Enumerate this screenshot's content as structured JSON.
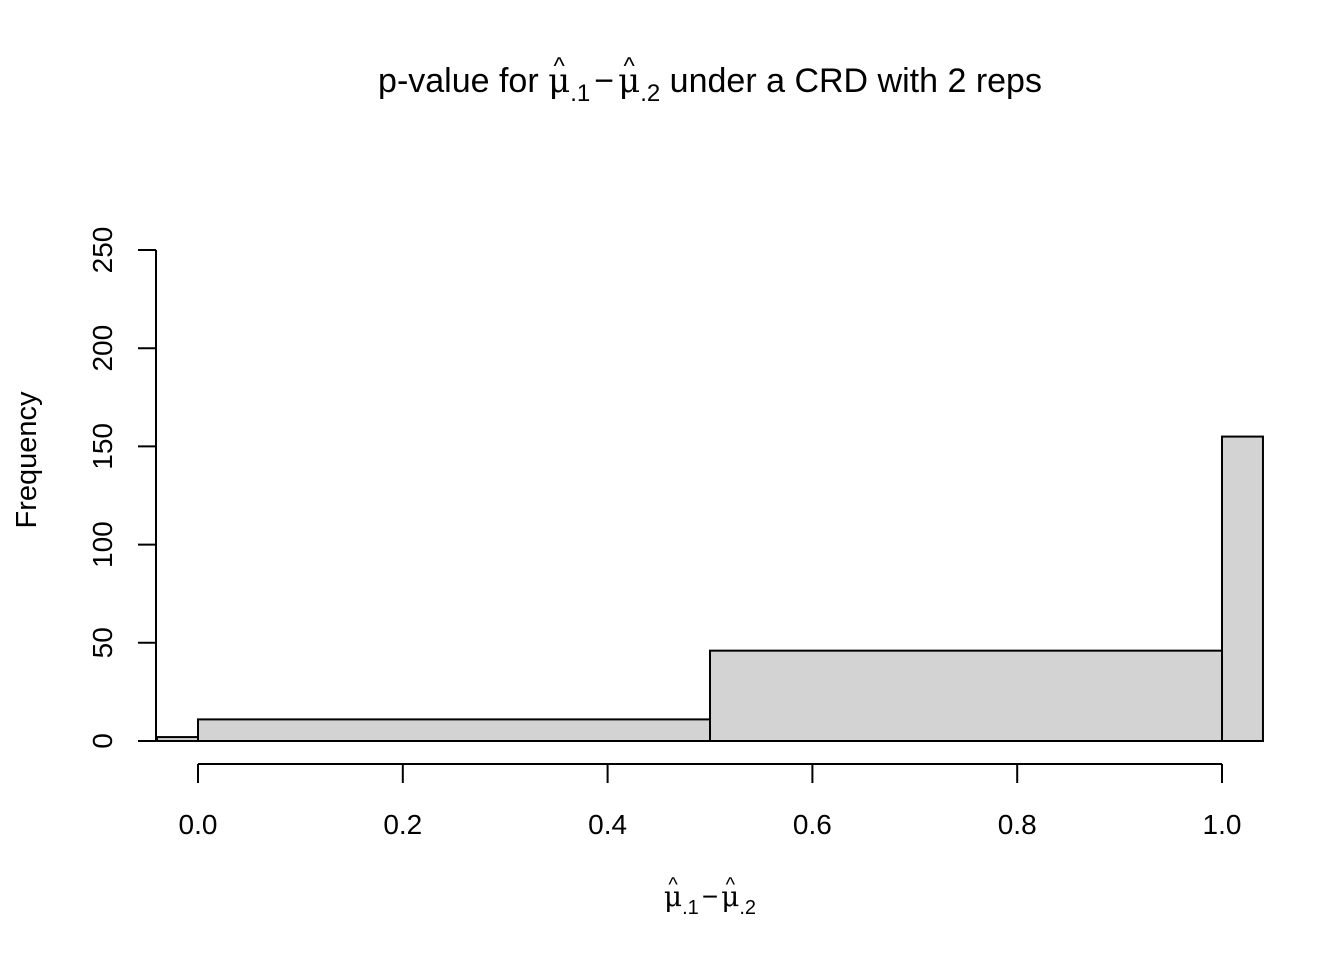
{
  "chart_data": {
    "type": "bar",
    "title": {
      "prefix": "p-value for ",
      "m1": "μ",
      "m1_hat": "^",
      "m1_sub": ".1",
      "minus": "−",
      "m2": "μ",
      "m2_hat": "^",
      "m2_sub": ".2",
      "suffix": " under a CRD with 2 reps"
    },
    "xlabel": {
      "m1": "μ",
      "m1_hat": "^",
      "m1_sub": ".1",
      "minus": "−",
      "m2": "μ",
      "m2_hat": "^",
      "m2_sub": ".2"
    },
    "ylabel": "Frequency",
    "xlim": [
      -0.2,
      1.04
    ],
    "ylim": [
      0,
      250
    ],
    "x_ticks": [
      0.0,
      0.2,
      0.4,
      0.6,
      0.8,
      1.0
    ],
    "x_tick_labels": [
      "0.0",
      "0.2",
      "0.4",
      "0.6",
      "0.8",
      "1.0"
    ],
    "y_ticks": [
      0,
      50,
      100,
      150,
      200,
      250
    ],
    "y_tick_labels": [
      "0",
      "50",
      "100",
      "150",
      "200",
      "250"
    ],
    "bins": [
      {
        "x0": -0.04,
        "x1": 0.0,
        "value": 2
      },
      {
        "x0": 0.0,
        "x1": 0.5,
        "value": 11
      },
      {
        "x0": 0.5,
        "x1": 1.0,
        "value": 46
      },
      {
        "x0": 1.0,
        "x1": 1.04,
        "value": 155
      }
    ],
    "bar_color": "#d3d3d3",
    "edge_color": "#000000",
    "grid": false
  }
}
